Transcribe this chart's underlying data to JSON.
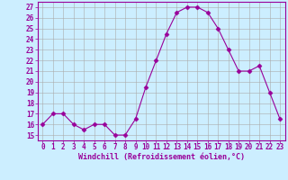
{
  "x": [
    0,
    1,
    2,
    3,
    4,
    5,
    6,
    7,
    8,
    9,
    10,
    11,
    12,
    13,
    14,
    15,
    16,
    17,
    18,
    19,
    20,
    21,
    22,
    23
  ],
  "y": [
    16,
    17,
    17,
    16,
    15.5,
    16,
    16,
    15,
    15,
    16.5,
    19.5,
    22,
    24.5,
    26.5,
    27,
    27,
    26.5,
    25,
    23,
    21,
    21,
    21.5,
    19,
    16.5
  ],
  "line_color": "#990099",
  "marker": "D",
  "marker_size": 2.5,
  "bg_color": "#cceeff",
  "grid_color": "#aaaaaa",
  "xlabel": "Windchill (Refroidissement éolien,°C)",
  "xlabel_color": "#990099",
  "tick_color": "#990099",
  "yticks": [
    15,
    16,
    17,
    18,
    19,
    20,
    21,
    22,
    23,
    24,
    25,
    26,
    27
  ],
  "xticks": [
    0,
    1,
    2,
    3,
    4,
    5,
    6,
    7,
    8,
    9,
    10,
    11,
    12,
    13,
    14,
    15,
    16,
    17,
    18,
    19,
    20,
    21,
    22,
    23
  ],
  "ylim": [
    14.5,
    27.5
  ],
  "xlim": [
    -0.5,
    23.5
  ],
  "tick_fontsize": 5.5,
  "xlabel_fontsize": 6.0
}
